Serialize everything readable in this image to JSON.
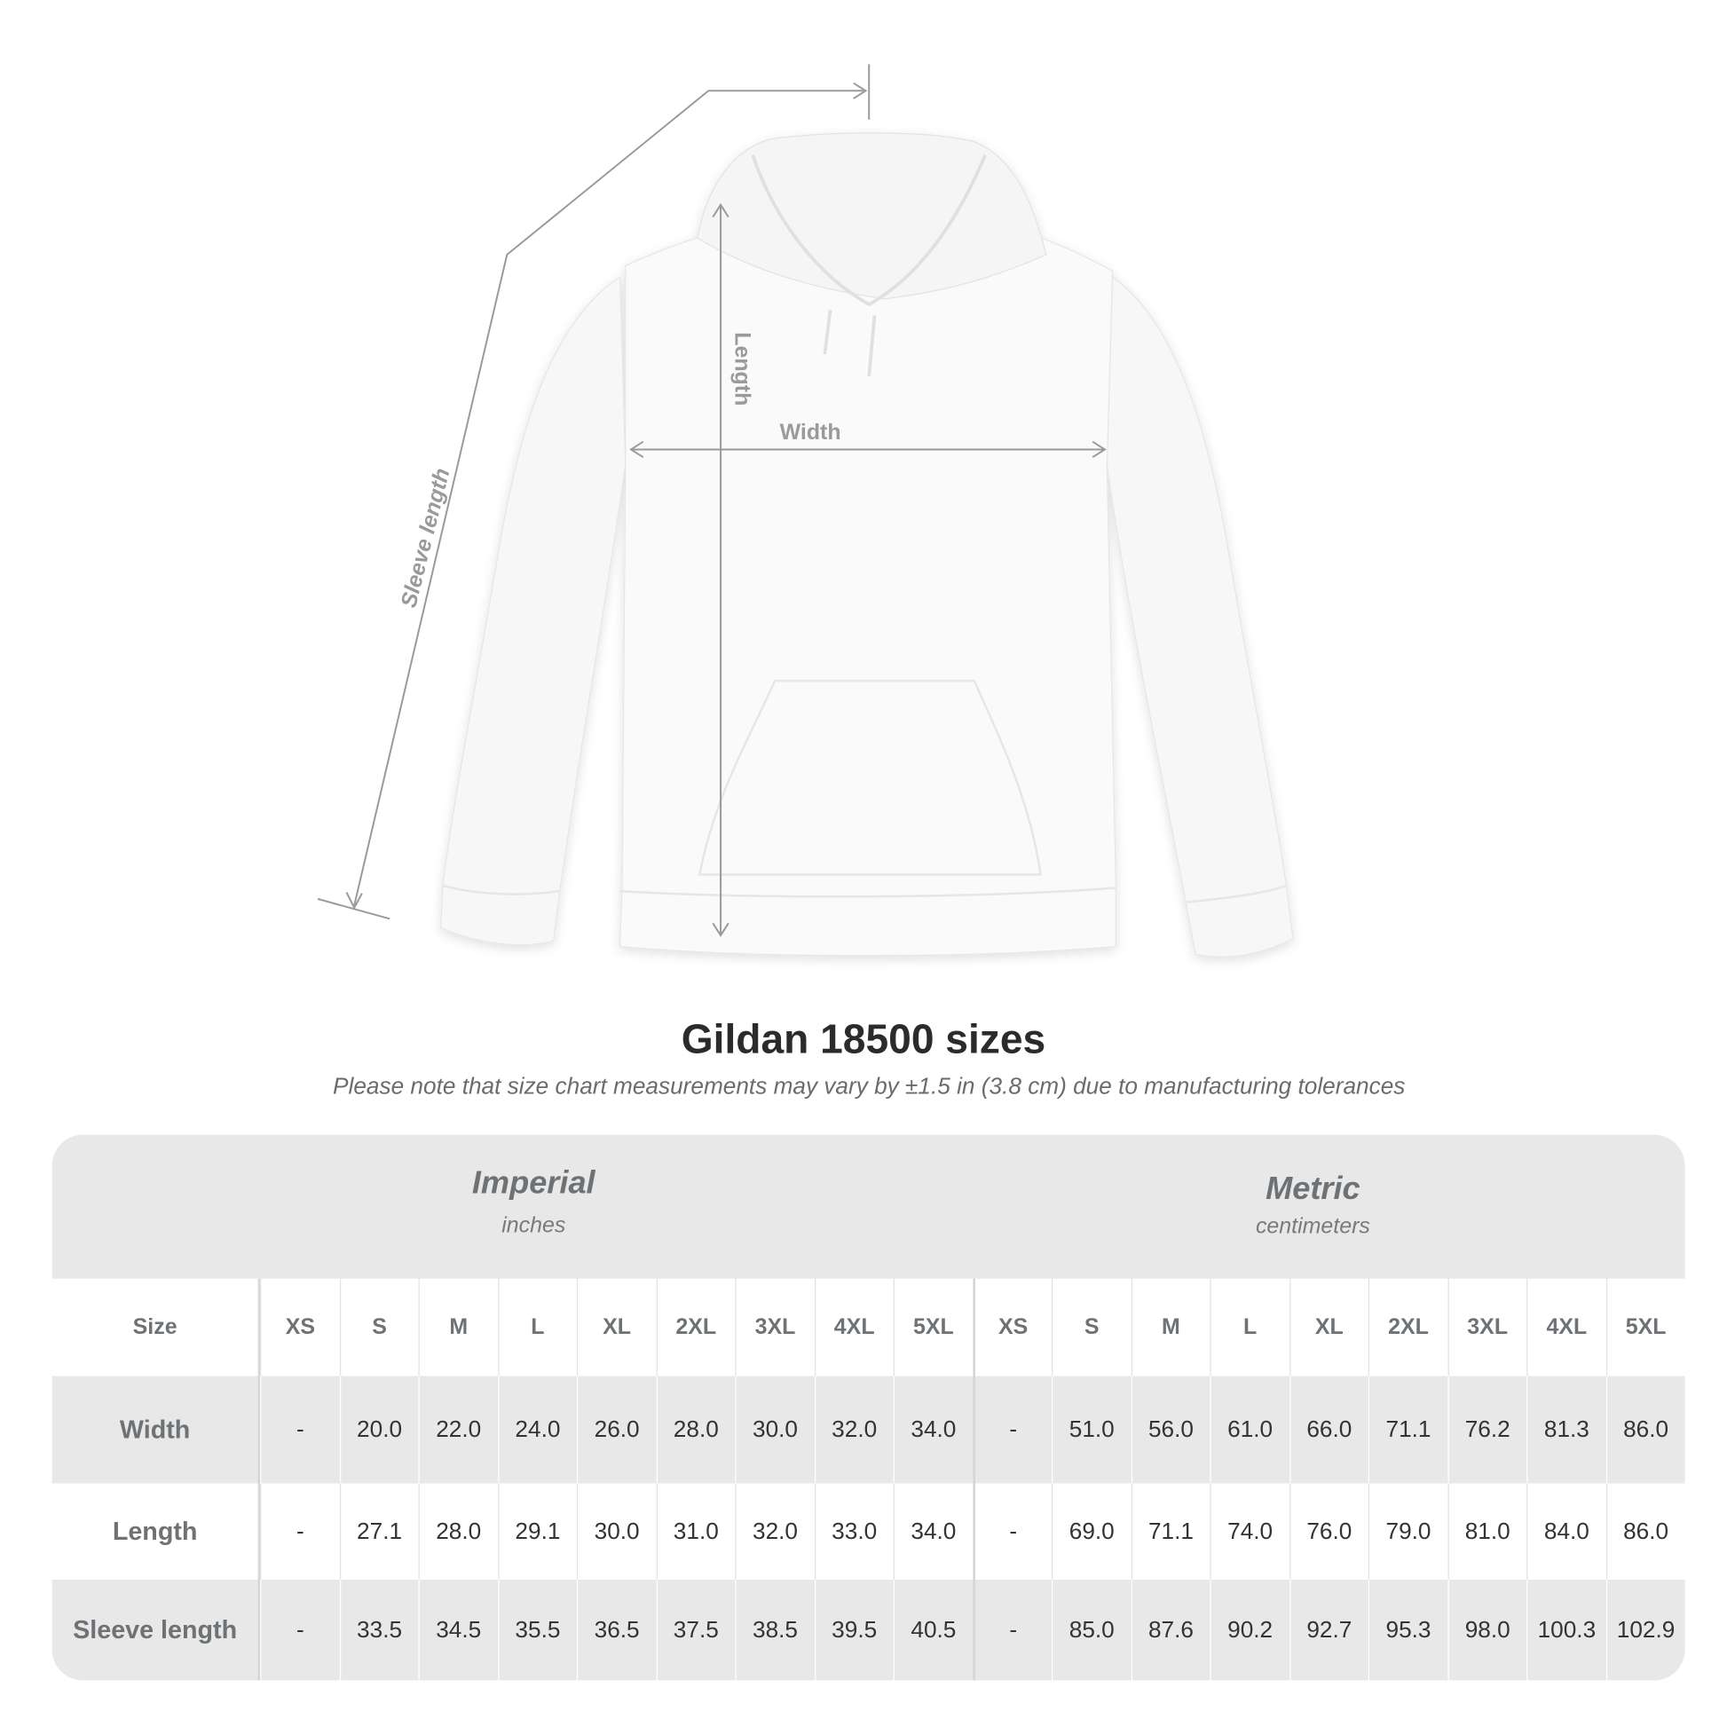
{
  "illustration": {
    "labels": {
      "sleeve": "Sleeve length",
      "length": "Length",
      "width": "Width"
    },
    "line_color": "#9a9a9a"
  },
  "title": "Gildan 18500 sizes",
  "note": "Please note that size chart measurements may vary by ±1.5 in (3.8 cm) due to manufacturing tolerances",
  "table": {
    "imperial": {
      "name": "Imperial",
      "unit": "inches"
    },
    "metric": {
      "name": "Metric",
      "unit": "centimeters"
    },
    "size_label": "Size",
    "sizes": [
      "XS",
      "S",
      "M",
      "L",
      "XL",
      "2XL",
      "3XL",
      "4XL",
      "5XL",
      "XS",
      "S",
      "M",
      "L",
      "XL",
      "2XL",
      "3XL",
      "4XL",
      "5XL"
    ],
    "rows": [
      {
        "label": "Width",
        "values": [
          "-",
          "20.0",
          "22.0",
          "24.0",
          "26.0",
          "28.0",
          "30.0",
          "32.0",
          "34.0",
          "-",
          "51.0",
          "56.0",
          "61.0",
          "66.0",
          "71.1",
          "76.2",
          "81.3",
          "86.0"
        ]
      },
      {
        "label": "Length",
        "values": [
          "-",
          "27.1",
          "28.0",
          "29.1",
          "30.0",
          "31.0",
          "32.0",
          "33.0",
          "34.0",
          "-",
          "69.0",
          "71.1",
          "74.0",
          "76.0",
          "79.0",
          "81.0",
          "84.0",
          "86.0"
        ]
      },
      {
        "label": "Sleeve length",
        "values": [
          "-",
          "33.5",
          "34.5",
          "35.5",
          "36.5",
          "37.5",
          "38.5",
          "39.5",
          "40.5",
          "-",
          "85.0",
          "87.6",
          "90.2",
          "92.7",
          "95.3",
          "98.0",
          "100.3",
          "102.9"
        ]
      }
    ]
  }
}
